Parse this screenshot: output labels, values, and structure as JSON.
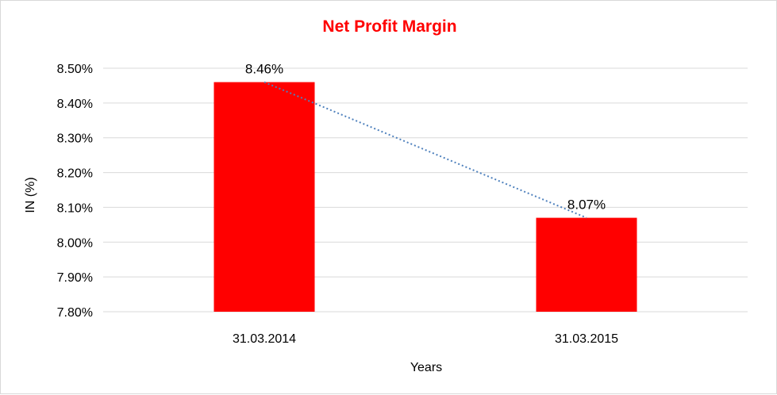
{
  "chart_data": {
    "type": "bar",
    "title": "Net Profit Margin",
    "xlabel": "Years",
    "ylabel": "IN (%)",
    "categories": [
      "31.03.2014",
      "31.03.2015"
    ],
    "values": [
      8.46,
      8.07
    ],
    "data_labels": [
      "8.46%",
      "8.07%"
    ],
    "ylim": [
      7.8,
      8.5
    ],
    "yticks": [
      7.8,
      7.9,
      8.0,
      8.1,
      8.2,
      8.3,
      8.4,
      8.5
    ],
    "ytick_labels": [
      "7.80%",
      "7.90%",
      "8.00%",
      "8.10%",
      "8.20%",
      "8.30%",
      "8.40%",
      "8.50%"
    ],
    "grid": true,
    "legend": "none",
    "trendline": "linear (dotted)",
    "colors": {
      "bar": "#ff0000",
      "title": "#ff0000",
      "trendline": "#4f81bd",
      "grid": "#d9d9d9"
    }
  }
}
